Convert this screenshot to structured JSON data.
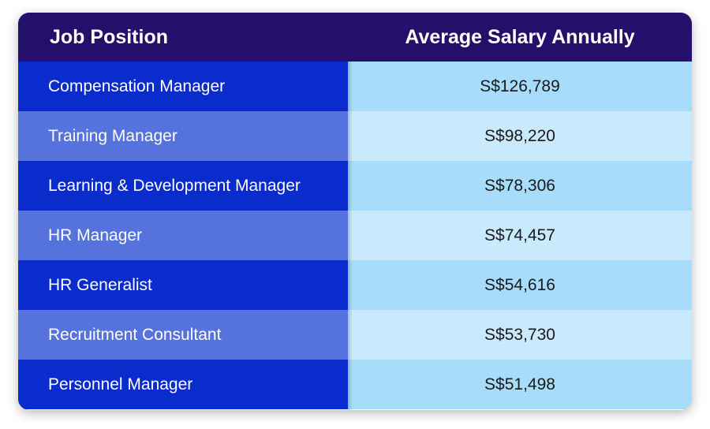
{
  "chart_data": {
    "type": "table",
    "title": "",
    "columns": [
      "Job Position",
      "Average Salary Annually"
    ],
    "rows": [
      {
        "position": "Compensation Manager",
        "salary": "S$126,789"
      },
      {
        "position": "Training Manager",
        "salary": "S$98,220"
      },
      {
        "position": "Learning & Development Manager",
        "salary": "S$78,306"
      },
      {
        "position": "HR Manager",
        "salary": "S$74,457"
      },
      {
        "position": "HR Generalist",
        "salary": "S$54,616"
      },
      {
        "position": "Recruitment Consultant",
        "salary": "S$53,730"
      },
      {
        "position": "Personnel Manager",
        "salary": "S$51,498"
      }
    ]
  },
  "colors": {
    "header_bg": "#23106a",
    "job_dark": "#0a2ccc",
    "job_light": "#5672dd",
    "salary_dark": "#a7dcfb",
    "salary_light": "#c9e9fc"
  }
}
